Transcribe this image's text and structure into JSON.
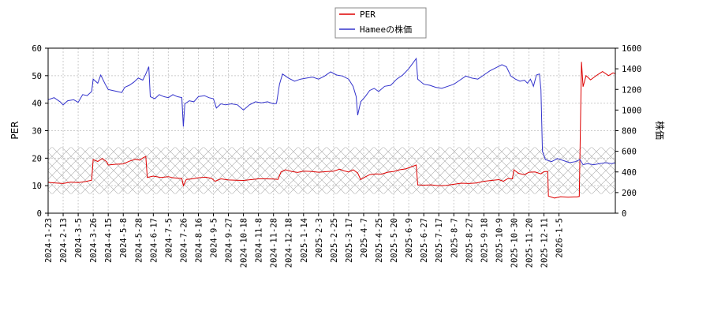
{
  "chart_data": {
    "type": "line",
    "legend": [
      {
        "label": "PER",
        "color": "#dd0000"
      },
      {
        "label": "Hameeの株価",
        "color": "#3333cc"
      }
    ],
    "legend_position": "top-center",
    "ylabel_left": "PER",
    "ylabel_right": "株価",
    "ylim_left": [
      0,
      60
    ],
    "ylim_right": [
      0,
      1600
    ],
    "yticks_left": [
      "0",
      "10",
      "20",
      "30",
      "40",
      "50",
      "60"
    ],
    "yticks_right": [
      "0",
      "200",
      "400",
      "600",
      "800",
      "1000",
      "1200",
      "1400",
      "1600"
    ],
    "grid": true,
    "hatch_band_per": [
      7,
      24
    ],
    "x_ticks": [
      "2024-1-23",
      "2024-2-13",
      "2024-3-5",
      "2024-3-26",
      "2024-4-15",
      "2024-5-8",
      "2024-5-28",
      "2024-6-17",
      "2024-7-5",
      "2024-7-26",
      "2024-8-16",
      "2024-9-5",
      "2024-9-27",
      "2024-10-18",
      "2024-11-8",
      "2024-11-28",
      "2024-12-18",
      "2025-1-14",
      "2025-2-3",
      "2025-2-25",
      "2025-3-17",
      "2025-4-7",
      "2025-4-25",
      "2025-5-20",
      "2025-6-9",
      "2025-6-27",
      "2025-7-17",
      "2025-8-7",
      "2025-8-27",
      "2025-9-18",
      "2025-10-9",
      "2025-10-30",
      "2025-11-20",
      "2025-12-11",
      "2026-1-5"
    ],
    "series": [
      {
        "name": "PER",
        "color": "#dd0000",
        "axis": "left",
        "points": [
          [
            0,
            11.2
          ],
          [
            0.5,
            11.0
          ],
          [
            1,
            10.8
          ],
          [
            1.5,
            11.3
          ],
          [
            2,
            11.1
          ],
          [
            2.5,
            11.5
          ],
          [
            2.9,
            12.0
          ],
          [
            3.0,
            19.5
          ],
          [
            3.3,
            18.8
          ],
          [
            3.6,
            19.9
          ],
          [
            3.9,
            18.7
          ],
          [
            4.0,
            17.5
          ],
          [
            4.5,
            17.8
          ],
          [
            5.0,
            17.9
          ],
          [
            5.4,
            18.9
          ],
          [
            5.8,
            19.6
          ],
          [
            6.1,
            19.3
          ],
          [
            6.3,
            20.1
          ],
          [
            6.5,
            20.6
          ],
          [
            6.6,
            13.0
          ],
          [
            7.0,
            13.5
          ],
          [
            7.5,
            13.0
          ],
          [
            8.0,
            13.3
          ],
          [
            8.3,
            12.9
          ],
          [
            8.9,
            12.6
          ],
          [
            9.0,
            10.0
          ],
          [
            9.2,
            12.3
          ],
          [
            9.6,
            12.5
          ],
          [
            10.0,
            12.9
          ],
          [
            10.5,
            13.1
          ],
          [
            10.9,
            12.6
          ],
          [
            11.1,
            11.6
          ],
          [
            11.5,
            12.5
          ],
          [
            12.0,
            12.1
          ],
          [
            12.5,
            12.0
          ],
          [
            13.0,
            11.9
          ],
          [
            13.5,
            12.2
          ],
          [
            14.0,
            12.5
          ],
          [
            14.5,
            12.5
          ],
          [
            15.0,
            12.4
          ],
          [
            15.3,
            12.3
          ],
          [
            15.5,
            15.0
          ],
          [
            15.8,
            15.8
          ],
          [
            16.2,
            15.2
          ],
          [
            16.6,
            14.8
          ],
          [
            17.0,
            15.3
          ],
          [
            17.5,
            15.2
          ],
          [
            18.0,
            14.9
          ],
          [
            18.5,
            15.1
          ],
          [
            19.0,
            15.3
          ],
          [
            19.4,
            16.0
          ],
          [
            19.7,
            15.4
          ],
          [
            20.0,
            15.0
          ],
          [
            20.3,
            15.8
          ],
          [
            20.6,
            14.6
          ],
          [
            20.8,
            12.2
          ],
          [
            21.0,
            12.9
          ],
          [
            21.4,
            14.0
          ],
          [
            21.8,
            14.3
          ],
          [
            22.2,
            14.2
          ],
          [
            22.6,
            14.9
          ],
          [
            23.0,
            15.2
          ],
          [
            23.4,
            15.8
          ],
          [
            23.8,
            16.1
          ],
          [
            24.2,
            16.9
          ],
          [
            24.5,
            17.5
          ],
          [
            24.6,
            10.3
          ],
          [
            25.0,
            10.2
          ],
          [
            25.5,
            10.3
          ],
          [
            26.0,
            10.0
          ],
          [
            26.5,
            10.1
          ],
          [
            27.0,
            10.5
          ],
          [
            27.5,
            10.9
          ],
          [
            28.0,
            10.8
          ],
          [
            28.5,
            11.0
          ],
          [
            29.0,
            11.6
          ],
          [
            29.5,
            11.9
          ],
          [
            30.0,
            12.2
          ],
          [
            30.3,
            11.6
          ],
          [
            30.6,
            12.6
          ],
          [
            30.9,
            12.5
          ],
          [
            31.0,
            15.8
          ],
          [
            31.3,
            14.5
          ],
          [
            31.7,
            14.0
          ],
          [
            32.0,
            14.9
          ],
          [
            32.4,
            15.0
          ],
          [
            32.8,
            14.3
          ],
          [
            33.0,
            15.1
          ],
          [
            33.25,
            15.2
          ],
          [
            33.3,
            6.2
          ],
          [
            33.7,
            5.5
          ],
          [
            34.1,
            6.0
          ],
          [
            34.6,
            5.8
          ],
          [
            35.0,
            5.9
          ],
          [
            35.2,
            5.9
          ],
          [
            35.35,
            6.1
          ],
          [
            35.5,
            55.0
          ],
          [
            35.6,
            46.0
          ],
          [
            35.8,
            50.0
          ],
          [
            36.1,
            48.5
          ],
          [
            36.5,
            50.1
          ],
          [
            36.9,
            51.5
          ],
          [
            37.3,
            50.0
          ],
          [
            37.6,
            51.0
          ],
          [
            38.0,
            50.2
          ]
        ]
      },
      {
        "name": "Hameeの株価",
        "color": "#3333cc",
        "axis": "right",
        "points": [
          [
            0,
            1100
          ],
          [
            0.4,
            1120
          ],
          [
            0.8,
            1080
          ],
          [
            1.0,
            1050
          ],
          [
            1.3,
            1090
          ],
          [
            1.7,
            1100
          ],
          [
            2.0,
            1075
          ],
          [
            2.3,
            1150
          ],
          [
            2.6,
            1140
          ],
          [
            2.9,
            1180
          ],
          [
            3.0,
            1300
          ],
          [
            3.3,
            1260
          ],
          [
            3.5,
            1340
          ],
          [
            3.8,
            1250
          ],
          [
            4.0,
            1200
          ],
          [
            4.3,
            1190
          ],
          [
            4.6,
            1180
          ],
          [
            4.9,
            1170
          ],
          [
            5.1,
            1220
          ],
          [
            5.4,
            1240
          ],
          [
            5.7,
            1270
          ],
          [
            6.0,
            1310
          ],
          [
            6.3,
            1290
          ],
          [
            6.5,
            1350
          ],
          [
            6.7,
            1420
          ],
          [
            6.8,
            1130
          ],
          [
            7.1,
            1110
          ],
          [
            7.4,
            1150
          ],
          [
            7.7,
            1130
          ],
          [
            8.0,
            1120
          ],
          [
            8.3,
            1150
          ],
          [
            8.6,
            1130
          ],
          [
            8.9,
            1120
          ],
          [
            9.0,
            840
          ],
          [
            9.1,
            1060
          ],
          [
            9.4,
            1090
          ],
          [
            9.7,
            1080
          ],
          [
            10.0,
            1130
          ],
          [
            10.4,
            1140
          ],
          [
            10.7,
            1120
          ],
          [
            11.0,
            1110
          ],
          [
            11.2,
            1020
          ],
          [
            11.5,
            1060
          ],
          [
            11.8,
            1050
          ],
          [
            12.2,
            1060
          ],
          [
            12.6,
            1050
          ],
          [
            13.0,
            1000
          ],
          [
            13.4,
            1050
          ],
          [
            13.8,
            1080
          ],
          [
            14.2,
            1070
          ],
          [
            14.6,
            1080
          ],
          [
            15.0,
            1060
          ],
          [
            15.2,
            1065
          ],
          [
            15.4,
            1250
          ],
          [
            15.6,
            1350
          ],
          [
            16.0,
            1310
          ],
          [
            16.4,
            1280
          ],
          [
            16.8,
            1300
          ],
          [
            17.2,
            1310
          ],
          [
            17.6,
            1320
          ],
          [
            18.0,
            1300
          ],
          [
            18.4,
            1330
          ],
          [
            18.8,
            1370
          ],
          [
            19.2,
            1340
          ],
          [
            19.6,
            1330
          ],
          [
            20.0,
            1300
          ],
          [
            20.3,
            1230
          ],
          [
            20.5,
            1130
          ],
          [
            20.6,
            950
          ],
          [
            20.8,
            1080
          ],
          [
            21.1,
            1130
          ],
          [
            21.4,
            1190
          ],
          [
            21.7,
            1210
          ],
          [
            22.0,
            1180
          ],
          [
            22.4,
            1230
          ],
          [
            22.8,
            1240
          ],
          [
            23.2,
            1300
          ],
          [
            23.6,
            1340
          ],
          [
            24.0,
            1400
          ],
          [
            24.3,
            1460
          ],
          [
            24.5,
            1500
          ],
          [
            24.6,
            1300
          ],
          [
            25.0,
            1250
          ],
          [
            25.4,
            1240
          ],
          [
            25.8,
            1220
          ],
          [
            26.2,
            1210
          ],
          [
            26.6,
            1230
          ],
          [
            27.0,
            1250
          ],
          [
            27.4,
            1290
          ],
          [
            27.8,
            1330
          ],
          [
            28.2,
            1310
          ],
          [
            28.6,
            1300
          ],
          [
            29.0,
            1340
          ],
          [
            29.4,
            1380
          ],
          [
            29.8,
            1410
          ],
          [
            30.2,
            1440
          ],
          [
            30.5,
            1420
          ],
          [
            30.8,
            1330
          ],
          [
            31.1,
            1300
          ],
          [
            31.4,
            1280
          ],
          [
            31.7,
            1290
          ],
          [
            31.9,
            1260
          ],
          [
            32.1,
            1300
          ],
          [
            32.3,
            1230
          ],
          [
            32.5,
            1340
          ],
          [
            32.7,
            1350
          ],
          [
            32.8,
            1200
          ],
          [
            32.9,
            600
          ],
          [
            33.1,
            520
          ],
          [
            33.5,
            500
          ],
          [
            33.9,
            530
          ],
          [
            34.3,
            510
          ],
          [
            34.7,
            490
          ],
          [
            35.1,
            500
          ],
          [
            35.4,
            520
          ],
          [
            35.6,
            470
          ],
          [
            35.9,
            480
          ],
          [
            36.3,
            470
          ],
          [
            36.7,
            480
          ],
          [
            37.1,
            490
          ],
          [
            37.5,
            480
          ],
          [
            38.0,
            495
          ]
        ]
      }
    ]
  }
}
